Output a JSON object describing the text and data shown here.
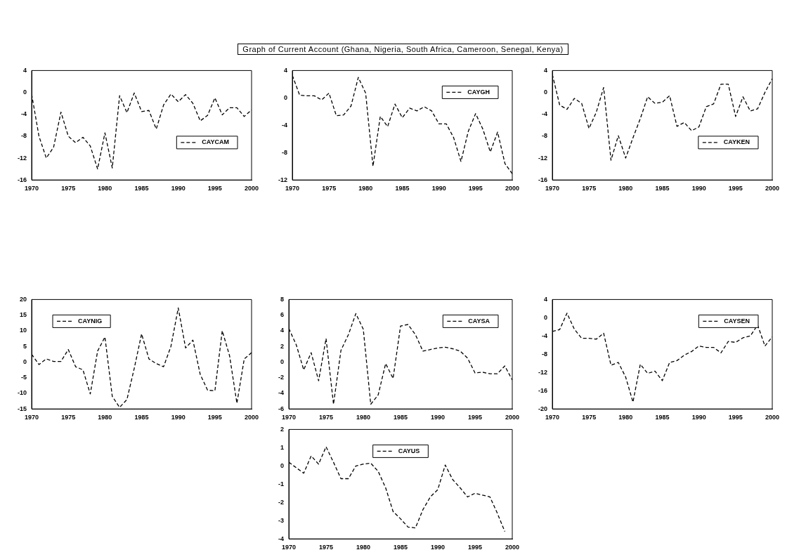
{
  "chart_data": [
    {
      "type": "other",
      "title": "Graph of Current Account (Ghana, Nigeria, South Africa, Cameroon, Senegal, Kenya)"
    },
    {
      "type": "line",
      "x": [
        1970,
        1971,
        1972,
        1973,
        1974,
        1975,
        1976,
        1977,
        1978,
        1979,
        1980,
        1981,
        1982,
        1983,
        1984,
        1985,
        1986,
        1987,
        1988,
        1989,
        1990,
        1991,
        1992,
        1993,
        1994,
        1995,
        1996,
        1997,
        1998,
        1999,
        2000
      ],
      "xlim": [
        1970,
        2000
      ],
      "xticks": [
        1970,
        1975,
        1980,
        1985,
        1990,
        1995,
        2000
      ],
      "ylim": [
        -16,
        4
      ],
      "yticks": [
        -16,
        -12,
        -8,
        -4,
        0,
        4
      ],
      "grid": false,
      "legend": "right",
      "marker": "none",
      "line_style": "dashed",
      "series": [
        {
          "name": "CAYCAM",
          "color": "#000000",
          "values": [
            -0.3,
            -8,
            -12,
            -10,
            -3.6,
            -8,
            -9.2,
            -8.2,
            -9.8,
            -14,
            -7.4,
            -13.8,
            -0.6,
            -3.7,
            -0.1,
            -3.5,
            -3.3,
            -6.7,
            -2.3,
            -0.3,
            -1.7,
            -0.4,
            -2,
            -5.2,
            -4.2,
            -1,
            -4.1,
            -2.8,
            -2.8,
            -4.4,
            -3.2
          ]
        }
      ]
    },
    {
      "type": "line",
      "x": [
        1970,
        1971,
        1972,
        1973,
        1974,
        1975,
        1976,
        1977,
        1978,
        1979,
        1980,
        1981,
        1982,
        1983,
        1984,
        1985,
        1986,
        1987,
        1988,
        1989,
        1990,
        1991,
        1992,
        1993,
        1994,
        1995,
        1996,
        1997,
        1998,
        1999,
        2000
      ],
      "xlim": [
        1970,
        2000
      ],
      "xticks": [
        1970,
        1975,
        1980,
        1985,
        1990,
        1995,
        2000
      ],
      "ylim": [
        -12,
        4
      ],
      "yticks": [
        -12,
        -8,
        -4,
        0,
        4
      ],
      "grid": false,
      "legend": "top right",
      "marker": "none",
      "line_style": "dashed",
      "series": [
        {
          "name": "CAYGH",
          "color": "#000000",
          "values": [
            3.3,
            0.4,
            0.3,
            0.3,
            -0.3,
            0.7,
            -2.6,
            -2.5,
            -1.2,
            3,
            0.7,
            -10,
            -2.7,
            -4.2,
            -0.9,
            -2.9,
            -1.5,
            -1.9,
            -1.3,
            -1.9,
            -3.8,
            -3.8,
            -5.8,
            -9.3,
            -4.9,
            -2.3,
            -4.6,
            -7.9,
            -5,
            -9.6,
            -11.1
          ]
        }
      ]
    },
    {
      "type": "line",
      "x": [
        1970,
        1971,
        1972,
        1973,
        1974,
        1975,
        1976,
        1977,
        1978,
        1979,
        1980,
        1981,
        1982,
        1983,
        1984,
        1985,
        1986,
        1987,
        1988,
        1989,
        1990,
        1991,
        1992,
        1993,
        1994,
        1995,
        1996,
        1997,
        1998,
        1999,
        2000
      ],
      "xlim": [
        1970,
        2000
      ],
      "xticks": [
        1970,
        1975,
        1980,
        1985,
        1990,
        1995,
        2000
      ],
      "ylim": [
        -16,
        4
      ],
      "yticks": [
        -16,
        -12,
        -8,
        -4,
        0,
        4
      ],
      "grid": false,
      "legend": "right",
      "marker": "none",
      "line_style": "dashed",
      "series": [
        {
          "name": "CAYKEN",
          "color": "#000000",
          "values": [
            3.3,
            -2.3,
            -3.1,
            -1.1,
            -2,
            -6.6,
            -3.6,
            0.9,
            -12.4,
            -7.9,
            -12,
            -8.3,
            -4.8,
            -0.8,
            -2,
            -1.8,
            -0.6,
            -6.2,
            -5.5,
            -7,
            -6.3,
            -2.6,
            -2.1,
            1.5,
            1.5,
            -4.4,
            -0.8,
            -3.4,
            -3,
            0,
            2.5
          ]
        }
      ]
    },
    {
      "type": "line",
      "x": [
        1970,
        1971,
        1972,
        1973,
        1974,
        1975,
        1976,
        1977,
        1978,
        1979,
        1980,
        1981,
        1982,
        1983,
        1984,
        1985,
        1986,
        1987,
        1988,
        1989,
        1990,
        1991,
        1992,
        1993,
        1994,
        1995,
        1996,
        1997,
        1998,
        1999,
        2000
      ],
      "xlim": [
        1970,
        2000
      ],
      "xticks": [
        1970,
        1975,
        1980,
        1985,
        1990,
        1995,
        2000
      ],
      "ylim": [
        -15,
        20
      ],
      "yticks": [
        -15,
        -10,
        -5,
        0,
        5,
        10,
        15,
        20
      ],
      "grid": false,
      "legend": "top left",
      "marker": "none",
      "line_style": "dashed",
      "series": [
        {
          "name": "CAYNIG",
          "color": "#000000",
          "values": [
            2.5,
            -0.8,
            1,
            0.2,
            0.2,
            4,
            -1.5,
            -2.5,
            -10.2,
            3.5,
            8,
            -11,
            -14.5,
            -12,
            -2,
            9,
            1,
            -0.5,
            -1.5,
            5,
            17.3,
            4.5,
            7,
            -4,
            -9,
            -9.2,
            10,
            2,
            -13.2,
            1,
            3
          ]
        }
      ]
    },
    {
      "type": "line",
      "x": [
        1970,
        1971,
        1972,
        1973,
        1974,
        1975,
        1976,
        1977,
        1978,
        1979,
        1980,
        1981,
        1982,
        1983,
        1984,
        1985,
        1986,
        1987,
        1988,
        1989,
        1990,
        1991,
        1992,
        1993,
        1994,
        1995,
        1996,
        1997,
        1998,
        1999,
        2000
      ],
      "xlim": [
        1970,
        2000
      ],
      "xticks": [
        1970,
        1975,
        1980,
        1985,
        1990,
        1995,
        2000
      ],
      "ylim": [
        -6,
        8
      ],
      "yticks": [
        -6,
        -4,
        -2,
        0,
        2,
        4,
        6,
        8
      ],
      "grid": false,
      "legend": "top right",
      "marker": "none",
      "line_style": "dashed",
      "series": [
        {
          "name": "CAYSA",
          "color": "#000000",
          "values": [
            4.3,
            2.2,
            -1,
            1.2,
            -2.4,
            3,
            -5.4,
            1.5,
            3.5,
            6.2,
            4.2,
            -5.4,
            -4.2,
            -0.2,
            -2.1,
            4.6,
            4.8,
            3.5,
            1.4,
            1.6,
            1.8,
            1.9,
            1.7,
            1.4,
            0.5,
            -1.4,
            -1.3,
            -1.5,
            -1.5,
            -0.5,
            -2.3
          ]
        }
      ]
    },
    {
      "type": "line",
      "x": [
        1970,
        1971,
        1972,
        1973,
        1974,
        1975,
        1976,
        1977,
        1978,
        1979,
        1980,
        1981,
        1982,
        1983,
        1984,
        1985,
        1986,
        1987,
        1988,
        1989,
        1990,
        1991,
        1992,
        1993,
        1994,
        1995,
        1996,
        1997,
        1998,
        1999,
        2000
      ],
      "xlim": [
        1970,
        2000
      ],
      "xticks": [
        1970,
        1975,
        1980,
        1985,
        1990,
        1995,
        2000
      ],
      "ylim": [
        -20,
        4
      ],
      "yticks": [
        -20,
        -16,
        -12,
        -8,
        -4,
        0,
        4
      ],
      "grid": false,
      "legend": "top right",
      "marker": "none",
      "line_style": "dashed",
      "series": [
        {
          "name": "CAYSEN",
          "color": "#000000",
          "values": [
            -3,
            -2.6,
            1,
            -2.5,
            -4.5,
            -4.5,
            -4.7,
            -3.4,
            -10.4,
            -9.8,
            -13,
            -18.5,
            -10.2,
            -12.2,
            -11.7,
            -13.8,
            -9.8,
            -9.4,
            -8.2,
            -7.4,
            -6.2,
            -6.5,
            -6.5,
            -7.7,
            -5.2,
            -5.4,
            -4.4,
            -4,
            -1.6,
            -6.2,
            -4.2
          ]
        }
      ]
    },
    {
      "type": "line",
      "x": [
        1970,
        1971,
        1972,
        1973,
        1974,
        1975,
        1976,
        1977,
        1978,
        1979,
        1980,
        1981,
        1982,
        1983,
        1984,
        1985,
        1986,
        1987,
        1988,
        1989,
        1990,
        1991,
        1992,
        1993,
        1994,
        1995,
        1996,
        1997,
        1998,
        1999
      ],
      "xlim": [
        1970,
        2000
      ],
      "xticks": [
        1970,
        1975,
        1980,
        1985,
        1990,
        1995,
        2000
      ],
      "ylim": [
        -4,
        2
      ],
      "yticks": [
        -4,
        -3,
        -2,
        -1,
        0,
        1,
        2
      ],
      "grid": false,
      "legend": "top",
      "marker": "none",
      "line_style": "dashed",
      "series": [
        {
          "name": "CAYUS",
          "color": "#000000",
          "values": [
            0.2,
            -0.1,
            -0.4,
            0.55,
            0.1,
            1.05,
            0.2,
            -0.7,
            -0.7,
            0,
            0.1,
            0.15,
            -0.3,
            -1.2,
            -2.5,
            -2.9,
            -3.35,
            -3.4,
            -2.4,
            -1.7,
            -1.3,
            0.05,
            -0.75,
            -1.2,
            -1.7,
            -1.5,
            -1.6,
            -1.7,
            -2.6,
            -3.6
          ]
        }
      ]
    }
  ]
}
